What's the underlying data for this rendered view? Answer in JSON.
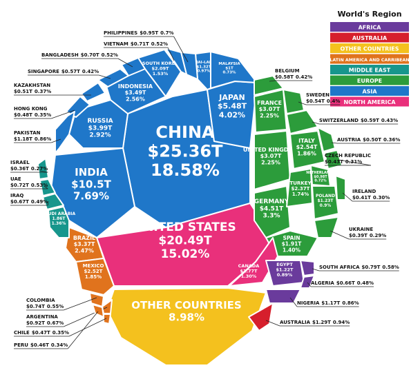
{
  "chart_data": {
    "type": "voronoi",
    "title": "World's Region",
    "legend": [
      {
        "name": "AFRICA",
        "color": "#6a3b9c"
      },
      {
        "name": "AUSTRALIA",
        "color": "#d61f2c"
      },
      {
        "name": "OTHER COUNTRIES",
        "color": "#f4c11e"
      },
      {
        "name": "LATIN AMERICA AND CARRIBEAN",
        "color": "#e0731d"
      },
      {
        "name": "MIDDLE EAST",
        "color": "#17968c"
      },
      {
        "name": "EUROPE",
        "color": "#2c9c3b"
      },
      {
        "name": "ASIA",
        "color": "#1f77c9"
      },
      {
        "name": "NORTH AMERICA",
        "color": "#e9307b"
      }
    ],
    "cells": [
      {
        "name": "CHINA",
        "region": "ASIA",
        "value": 25.36,
        "value_label": "$25.36T",
        "share": 18.58,
        "share_label": "18.58%"
      },
      {
        "name": "UNITED STATES",
        "region": "NORTH AMERICA",
        "value": 20.49,
        "value_label": "$20.49T",
        "share": 15.02,
        "share_label": "15.02%"
      },
      {
        "name": "OTHER COUNTRIES",
        "region": "OTHER COUNTRIES",
        "share": 8.98,
        "share_label": "8.98%"
      },
      {
        "name": "INDIA",
        "region": "ASIA",
        "value": 10.5,
        "value_label": "$10.5T",
        "share": 7.69,
        "share_label": "7.69%"
      },
      {
        "name": "JAPAN",
        "region": "ASIA",
        "value": 5.48,
        "value_label": "$5.48T",
        "share": 4.02,
        "share_label": "4.02%"
      },
      {
        "name": "GERMANY",
        "region": "EUROPE",
        "value": 4.51,
        "value_label": "$4.51T",
        "share": 3.3,
        "share_label": "3.3%"
      },
      {
        "name": "RUSSIA",
        "region": "ASIA",
        "value": 3.99,
        "value_label": "$3.99T",
        "share": 2.92,
        "share_label": "2.92%"
      },
      {
        "name": "INDONESIA",
        "region": "ASIA",
        "value": 3.49,
        "value_label": "$3.49T",
        "share": 2.56,
        "share_label": "2.56%"
      },
      {
        "name": "BRAZIL",
        "region": "LATIN AMERICA AND CARRIBEAN",
        "value": 3.37,
        "value_label": "$3.37T",
        "share": 2.47,
        "share_label": "2.47%"
      },
      {
        "name": "FRANCE",
        "region": "EUROPE",
        "value": 3.07,
        "value_label": "$3.07T",
        "share": 2.25,
        "share_label": "2.25%"
      },
      {
        "name": "UNITED KINGDOM",
        "region": "EUROPE",
        "value": 3.07,
        "value_label": "$3.07T",
        "share": 2.25,
        "share_label": "2.25%"
      },
      {
        "name": "ITALY",
        "region": "EUROPE",
        "value": 2.54,
        "value_label": "$2.54T",
        "share": 1.86,
        "share_label": "1.86%"
      },
      {
        "name": "MEXICO",
        "region": "LATIN AMERICA AND CARRIBEAN",
        "value": 2.52,
        "value_label": "$2.52T",
        "share": 1.85,
        "share_label": "1.85%"
      },
      {
        "name": "TURKEY",
        "region": "EUROPE",
        "value": 2.37,
        "value_label": "$2.37T",
        "share": 1.74,
        "share_label": "1.74%"
      },
      {
        "name": "SOUTH KOREA",
        "region": "ASIA",
        "value": 2.09,
        "value_label": "$2.09T",
        "share": 1.53,
        "share_label": "1.53%"
      },
      {
        "name": "SPAIN",
        "region": "EUROPE",
        "value": 1.91,
        "value_label": "$1.91T",
        "share": 1.4,
        "share_label": "1.40%"
      },
      {
        "name": "CANADA",
        "region": "NORTH AMERICA",
        "value": 1.77,
        "value_label": "$1.77T",
        "share": 1.3,
        "share_label": "1.30%"
      },
      {
        "name": "SAUDI ARABIA",
        "region": "MIDDLE EAST",
        "value": 1.86,
        "value_label": "1.86T",
        "share": 1.36,
        "share_label": "1.36%"
      },
      {
        "name": "THAI-LAND",
        "region": "ASIA",
        "value": 1.32,
        "value_label": "$1.32T",
        "share": 0.97,
        "share_label": "0.97%"
      },
      {
        "name": "MALAYSIA",
        "region": "ASIA",
        "value": 1,
        "value_label": "$1T",
        "share": 0.73,
        "share_label": "0.73%"
      },
      {
        "name": "PHILIPPINES",
        "region": "ASIA",
        "value": 0.95,
        "value_label": "$0.95T",
        "share": 0.7,
        "share_label": "0.7%"
      },
      {
        "name": "VIETNAM",
        "region": "ASIA",
        "value": 0.71,
        "value_label": "$0.71T",
        "share": 0.52,
        "share_label": "0.52%"
      },
      {
        "name": "BANGLADESH",
        "region": "ASIA",
        "value": 0.7,
        "value_label": "$0.70T",
        "share": 0.52,
        "share_label": "0.52%"
      },
      {
        "name": "SINGAPORE",
        "region": "ASIA",
        "value": 0.57,
        "value_label": "$0.57T",
        "share": 0.42,
        "share_label": "0.42%"
      },
      {
        "name": "KAZAKHSTAN",
        "region": "ASIA",
        "value": 0.51,
        "value_label": "$0.51T",
        "share": 0.37,
        "share_label": "0.37%"
      },
      {
        "name": "HONG KONG",
        "region": "ASIA",
        "value": 0.48,
        "value_label": "$0.48T",
        "share": 0.35,
        "share_label": "0.35%"
      },
      {
        "name": "PAKISTAN",
        "region": "ASIA",
        "value": 1.18,
        "value_label": "$1.18T",
        "share": 0.86,
        "share_label": "0.86%"
      },
      {
        "name": "ISRAEL",
        "region": "MIDDLE EAST",
        "value": 0.36,
        "value_label": "$0.36T",
        "share": 0.27,
        "share_label": "0.27%"
      },
      {
        "name": "UAE",
        "region": "MIDDLE EAST",
        "value": 0.72,
        "value_label": "$0.72T",
        "share": 0.53,
        "share_label": "0.53%"
      },
      {
        "name": "IRAQ",
        "region": "MIDDLE EAST",
        "value": 0.67,
        "value_label": "$0.67T",
        "share": 0.49,
        "share_label": "0.49%"
      },
      {
        "name": "BELGIUM",
        "region": "EUROPE",
        "value": 0.58,
        "value_label": "$0.58T",
        "share": 0.42,
        "share_label": "0.42%"
      },
      {
        "name": "SWEDEN",
        "region": "EUROPE",
        "value": 0.54,
        "value_label": "$0.54T",
        "share": 0.4,
        "share_label": "0.4%"
      },
      {
        "name": "SWITZERLAND",
        "region": "EUROPE",
        "value": 0.59,
        "value_label": "$0.59T",
        "share": 0.43,
        "share_label": "0.43%"
      },
      {
        "name": "AUSTRIA",
        "region": "EUROPE",
        "value": 0.5,
        "value_label": "$0.50T",
        "share": 0.36,
        "share_label": "0.36%"
      },
      {
        "name": "CZECH REPUBLIC",
        "region": "EUROPE",
        "value": 0.43,
        "value_label": "$0.43T",
        "share": 0.31,
        "share_label": "0.31%"
      },
      {
        "name": "NETHERLANDS",
        "region": "EUROPE",
        "value": 0.98,
        "value_label": "$0.98T",
        "share": 0.72,
        "share_label": "0.72%"
      },
      {
        "name": "POLAND",
        "region": "EUROPE",
        "value": 1.23,
        "value_label": "$1.23T",
        "share": 0.9,
        "share_label": "0.9%"
      },
      {
        "name": "IRELAND",
        "region": "EUROPE",
        "value": 0.41,
        "value_label": "$0.41T",
        "share": 0.3,
        "share_label": "0.30%"
      },
      {
        "name": "UKRAINE",
        "region": "EUROPE",
        "value": 0.39,
        "value_label": "$0.39T",
        "share": 0.29,
        "share_label": "0.29%"
      },
      {
        "name": "EGYPT",
        "region": "AFRICA",
        "value": 1.22,
        "value_label": "$1.22T",
        "share": 0.89,
        "share_label": "0.89%"
      },
      {
        "name": "SOUTH AFRICA",
        "region": "AFRICA",
        "value": 0.79,
        "value_label": "$0.79T",
        "share": 0.58,
        "share_label": "0.58%"
      },
      {
        "name": "ALGERIA",
        "region": "AFRICA",
        "value": 0.66,
        "value_label": "$0.66T",
        "share": 0.48,
        "share_label": "0.48%"
      },
      {
        "name": "NIGERIA",
        "region": "AFRICA",
        "value": 1.17,
        "value_label": "$1.17T",
        "share": 0.86,
        "share_label": "0.86%"
      },
      {
        "name": "AUSTRALIA",
        "region": "AUSTRALIA",
        "value": 1.29,
        "value_label": "$1.29T",
        "share": 0.94,
        "share_label": "0.94%"
      },
      {
        "name": "COLOMBIA",
        "region": "LATIN AMERICA AND CARRIBEAN",
        "value": 0.74,
        "value_label": "$0.74T",
        "share": 0.55,
        "share_label": "0.55%"
      },
      {
        "name": "ARGENTINA",
        "region": "LATIN AMERICA AND CARRIBEAN",
        "value": 0.92,
        "value_label": "$0.92T",
        "share": 0.67,
        "share_label": "0.67%"
      },
      {
        "name": "CHILE",
        "region": "LATIN AMERICA AND CARRIBEAN",
        "value": 0.47,
        "value_label": "$0.47T",
        "share": 0.35,
        "share_label": "0.35%"
      },
      {
        "name": "PERU",
        "region": "LATIN AMERICA AND CARRIBEAN",
        "value": 0.46,
        "value_label": "$0.46T",
        "share": 0.34,
        "share_label": "0.34%"
      }
    ]
  }
}
